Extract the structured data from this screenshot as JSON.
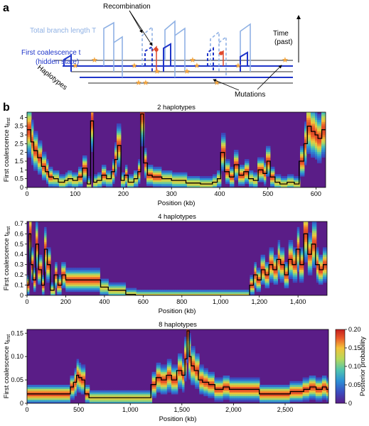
{
  "panel_a": {
    "label": "a",
    "recombination": "Recombination",
    "total_branch_length": "Total branch length T",
    "first_coalescence": "First coalescence t",
    "hidden_state": "(hidden state)",
    "haplotypes": "Haplotypes",
    "time": "Time",
    "time_past": "(past)",
    "mutations": "Mutations",
    "colors": {
      "light_tree": "#8fb1e4",
      "dark_tree": "#1f35c9",
      "recomb": "#e04a2c",
      "mutation": "#f2a540"
    }
  },
  "panel_b": {
    "label": "b"
  },
  "colorbar": {
    "label": "Posterior probability",
    "ticks": [
      "0",
      "0.05",
      "0.10",
      "0.15",
      "0.20"
    ],
    "range": [
      0,
      0.2
    ],
    "colors": [
      "#5a1d87",
      "#3b4cc0",
      "#2c8fd6",
      "#4fc4b0",
      "#b6d95a",
      "#f3c23a",
      "#ea5a2a",
      "#c41e1e"
    ]
  },
  "chart_data": [
    {
      "type": "heatmap",
      "title": "2 haplotypes",
      "xlabel": "Position (kb)",
      "ylabel": "First coalescence t",
      "ylabel_sub": "first",
      "xlim": [
        0,
        620
      ],
      "ylim": [
        0,
        4.3
      ],
      "xticks": [
        0,
        100,
        200,
        300,
        400,
        500,
        600
      ],
      "xtick_labels": [
        "0",
        "100",
        "200",
        "300",
        "400",
        "500",
        "600"
      ],
      "yticks": [
        0,
        0.5,
        1,
        1.5,
        2,
        2.5,
        3,
        3.5,
        4
      ],
      "ytick_labels": [
        "0",
        "0.5",
        "1",
        "1.5",
        "2",
        "2.5",
        "3",
        "3.5",
        "4"
      ],
      "true_tmrca": {
        "x": [
          0,
          8,
          14,
          22,
          30,
          38,
          45,
          55,
          65,
          78,
          85,
          95,
          105,
          115,
          125,
          132,
          138,
          145,
          155,
          165,
          175,
          182,
          188,
          195,
          202,
          210,
          222,
          230,
          236,
          242,
          250,
          260,
          280,
          300,
          330,
          360,
          375,
          385,
          395,
          402,
          410,
          420,
          430,
          440,
          450,
          460,
          470,
          480,
          490,
          498,
          505,
          515,
          525,
          540,
          555,
          565,
          575,
          582,
          590,
          598,
          604,
          612
        ],
        "y": [
          3.3,
          2.6,
          2.1,
          1.7,
          1.2,
          0.9,
          0.6,
          0.5,
          0.3,
          0.4,
          0.5,
          0.4,
          0.6,
          1.1,
          0.2,
          3.8,
          0.3,
          0.4,
          0.7,
          0.5,
          0.9,
          1.6,
          2.4,
          0.4,
          0.7,
          0.3,
          0.5,
          0.9,
          4.2,
          1.4,
          0.7,
          0.6,
          0.5,
          0.4,
          0.25,
          0.2,
          0.2,
          0.3,
          0.5,
          2.0,
          0.9,
          0.6,
          1.3,
          0.7,
          0.9,
          0.5,
          0.4,
          1.0,
          0.8,
          1.5,
          0.6,
          0.3,
          0.2,
          0.3,
          0.2,
          1.5,
          2.5,
          3.5,
          3.2,
          3.0,
          2.8,
          3.3
        ]
      }
    },
    {
      "type": "heatmap",
      "title": "4 haplotypes",
      "xlabel": "Position (kb)",
      "ylabel": "First coalescence t",
      "ylabel_sub": "first",
      "xlim": [
        0,
        1550
      ],
      "ylim": [
        0,
        0.72
      ],
      "xticks": [
        0,
        200,
        400,
        600,
        800,
        1000,
        1200,
        1400
      ],
      "xtick_labels": [
        "0",
        "200",
        "400",
        "600",
        "800",
        "1,000",
        "1,200",
        "1,400"
      ],
      "yticks": [
        0,
        0.1,
        0.2,
        0.3,
        0.4,
        0.5,
        0.6,
        0.7
      ],
      "ytick_labels": [
        "0",
        "0.1",
        "0.2",
        "0.3",
        "0.4",
        "0.5",
        "0.6",
        "0.7"
      ],
      "true_tmrca": {
        "x": [
          0,
          10,
          20,
          30,
          45,
          60,
          75,
          90,
          105,
          120,
          140,
          160,
          180,
          200,
          250,
          300,
          350,
          380,
          420,
          470,
          510,
          560,
          600,
          700,
          800,
          900,
          1000,
          1100,
          1140,
          1150,
          1170,
          1190,
          1210,
          1230,
          1250,
          1270,
          1290,
          1310,
          1330,
          1350,
          1370,
          1390,
          1410,
          1430,
          1450,
          1470,
          1490,
          1510,
          1530,
          1545
        ],
        "y": [
          0.1,
          0.6,
          0.3,
          0.15,
          0.5,
          0.25,
          0.1,
          0.45,
          0.3,
          0.05,
          0.2,
          0.1,
          0.2,
          0.15,
          0.15,
          0.15,
          0.15,
          0.08,
          0.05,
          0.05,
          0.01,
          0.0,
          0.0,
          0.0,
          0.0,
          0.0,
          0.0,
          0.0,
          0.0,
          0.1,
          0.2,
          0.15,
          0.25,
          0.2,
          0.3,
          0.25,
          0.35,
          0.3,
          0.2,
          0.35,
          0.3,
          0.45,
          0.3,
          0.6,
          0.4,
          0.5,
          0.3,
          0.25,
          0.3,
          0.3
        ]
      }
    },
    {
      "type": "heatmap",
      "title": "8 haplotypes",
      "xlabel": "Position (kb)",
      "ylabel": "First coalescence t",
      "ylabel_sub": "first",
      "xlim": [
        0,
        2920
      ],
      "ylim": [
        0,
        0.158
      ],
      "xticks": [
        0,
        500,
        1000,
        1500,
        2000,
        2500
      ],
      "xtick_labels": [
        "0",
        "500",
        "1,000",
        "1,500",
        "2,000",
        "2,500"
      ],
      "yticks": [
        0,
        0.05,
        0.1,
        0.15
      ],
      "ytick_labels": [
        "0",
        "0.05",
        "0.10",
        "0.15"
      ],
      "true_tmrca": {
        "x": [
          0,
          100,
          200,
          300,
          380,
          420,
          450,
          480,
          500,
          530,
          560,
          600,
          700,
          800,
          900,
          1000,
          1100,
          1170,
          1200,
          1250,
          1300,
          1350,
          1400,
          1450,
          1500,
          1530,
          1550,
          1570,
          1590,
          1620,
          1660,
          1700,
          1760,
          1820,
          1900,
          1960,
          2050,
          2150,
          2250,
          2350,
          2450,
          2550,
          2620,
          2680,
          2740,
          2800,
          2860,
          2900
        ],
        "y": [
          0.02,
          0.02,
          0.02,
          0.02,
          0.02,
          0.035,
          0.045,
          0.06,
          0.055,
          0.05,
          0.02,
          0.012,
          0.012,
          0.012,
          0.012,
          0.012,
          0.012,
          0.012,
          0.04,
          0.055,
          0.05,
          0.06,
          0.05,
          0.07,
          0.06,
          0.095,
          0.155,
          0.1,
          0.08,
          0.07,
          0.05,
          0.045,
          0.04,
          0.03,
          0.035,
          0.03,
          0.03,
          0.03,
          0.02,
          0.02,
          0.02,
          0.025,
          0.025,
          0.03,
          0.035,
          0.03,
          0.035,
          0.03
        ]
      }
    }
  ]
}
